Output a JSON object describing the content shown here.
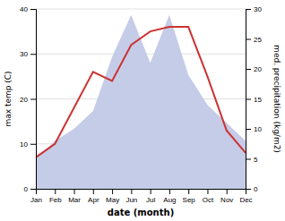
{
  "chart_data": {
    "type": "line",
    "xlabel": "date (month)",
    "ylabel": "max temp (C)",
    "y2label": "med. precipitation (kg/m2)",
    "categories": [
      "Jan",
      "Feb",
      "Mar",
      "Apr",
      "May",
      "Jun",
      "Jul",
      "Aug",
      "Sep",
      "Oct",
      "Nov",
      "Dec"
    ],
    "series": [
      {
        "type": "area",
        "axis": "y2",
        "color": "#c5cce8",
        "values": [
          5,
          8,
          10,
          13,
          22,
          29,
          21,
          29,
          19,
          14,
          11,
          8
        ]
      },
      {
        "type": "line",
        "color": "#cc3333",
        "values": [
          7,
          10,
          18,
          26,
          24,
          32,
          35,
          36,
          36,
          25,
          13,
          8
        ]
      }
    ],
    "ylim": [
      0,
      40
    ],
    "yticks": [
      0,
      10,
      20,
      30,
      40
    ],
    "y2lim": [
      0,
      30
    ],
    "y2ticks": [
      0,
      5,
      10,
      15,
      20,
      25,
      30
    ],
    "grid": true
  }
}
